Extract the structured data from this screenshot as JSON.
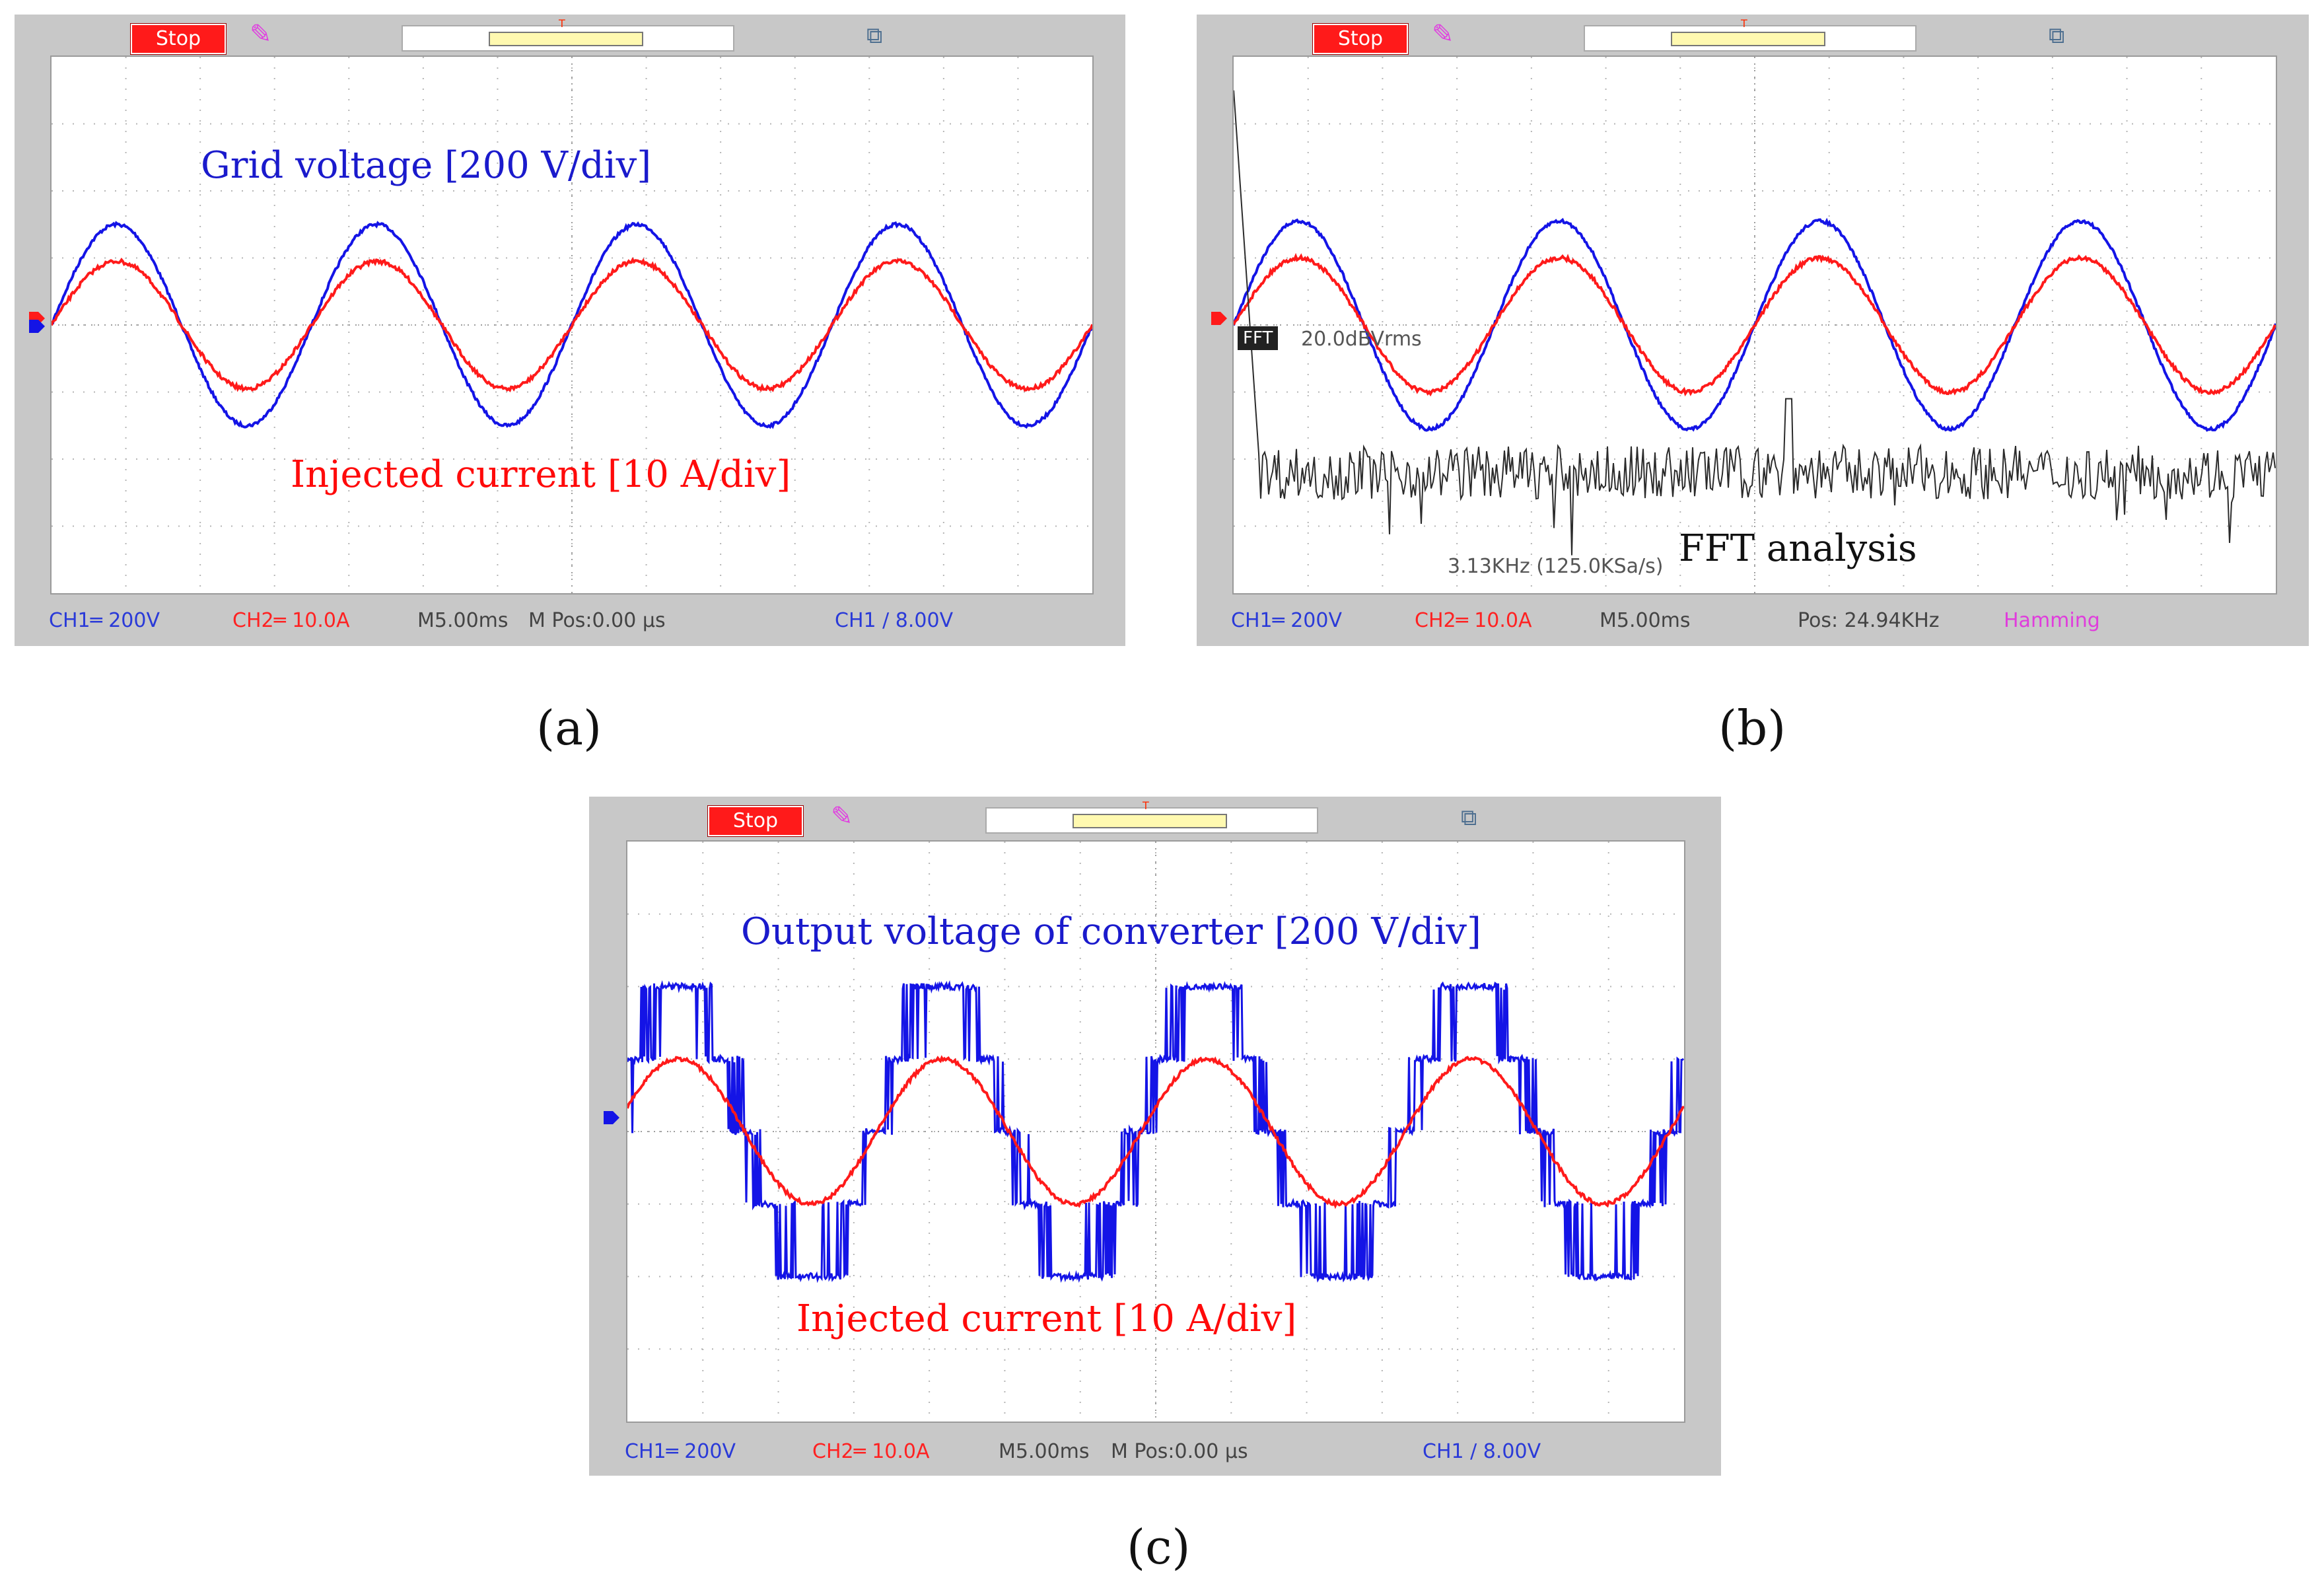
{
  "colors": {
    "ch1": "#1414e6",
    "ch2": "#ff1a1a",
    "fft": "#2b2b2b",
    "panel": "#c8c8c8",
    "grid": "#b5b5b5"
  },
  "panels": [
    {
      "id": "a",
      "caption": "(a)",
      "stop_label": "Stop",
      "note_top": "Grid voltage [200 V/div]",
      "note_bottom": "Injected   current   [10 A/div]",
      "status": {
        "ch1": "CH1═ 200V",
        "ch2": "CH2═ 10.0A",
        "time": "M5.00ms",
        "pos": "M Pos:0.00 µs",
        "trig": "CH1 ∕ 8.00V"
      },
      "ch1_marker": "1",
      "ch2_marker": "2",
      "trigger_marker": "T"
    },
    {
      "id": "b",
      "caption": "(b)",
      "stop_label": "Stop",
      "fft_badge": "FFT",
      "fft_scale": "20.0dBVrms",
      "fft_note": "3.13KHz (125.0KSa/s)",
      "note_fft": "FFT analysis",
      "status": {
        "ch1": "CH1═ 200V",
        "ch2": "CH2═ 10.0A",
        "time": "M5.00ms",
        "pos": "Pos: 24.94KHz",
        "window": "Hamming"
      },
      "ch1_marker": "1"
    },
    {
      "id": "c",
      "caption": "(c)",
      "stop_label": "Stop",
      "note_top": "Output voltage of converter [200 V/div]",
      "note_bottom": "Injected   current   [10 A/div]",
      "status": {
        "ch1": "CH1═ 200V",
        "ch2": "CH2═ 10.0A",
        "time": "M5.00ms",
        "pos": "M Pos:0.00 µs",
        "trig": "CH1 ∕ 8.00V"
      },
      "ch1_marker": "1",
      "trigger_marker": "T"
    }
  ],
  "chart_data": [
    {
      "type": "line",
      "title": "(a) Grid voltage and injected current",
      "x_unit": "ms",
      "x_per_div": 5,
      "x_divisions": 14,
      "y_divisions": 8,
      "series": [
        {
          "name": "Grid voltage",
          "channel": "CH1",
          "scale": "200 V/div",
          "amplitude_div": 1.5,
          "periods_on_screen": 4,
          "phase_deg": 0,
          "color": "#1414e6"
        },
        {
          "name": "Injected current",
          "channel": "CH2",
          "scale": "10 A/div",
          "amplitude_div": 0.95,
          "periods_on_screen": 4,
          "phase_deg": 0,
          "color": "#ff1a1a"
        }
      ]
    },
    {
      "type": "line",
      "title": "(b) FFT analysis",
      "x_unit": "ms",
      "x_per_div": 5,
      "x_divisions": 14,
      "y_divisions": 8,
      "series": [
        {
          "name": "Grid voltage",
          "channel": "CH1",
          "scale": "200 V/div",
          "amplitude_div": 1.55,
          "periods_on_screen": 4,
          "phase_deg": 0,
          "color": "#1414e6"
        },
        {
          "name": "Injected current",
          "channel": "CH2",
          "scale": "10 A/div",
          "amplitude_div": 1.0,
          "periods_on_screen": 4,
          "phase_deg": 0,
          "color": "#ff1a1a"
        },
        {
          "name": "FFT",
          "scale": "20.0dBVrms",
          "baseline_div": -2.2,
          "noise_div": 0.5,
          "fft_sample_rate": "125.0KSa/s",
          "fft_peak": "3.13KHz",
          "color": "#2b2b2b"
        }
      ]
    },
    {
      "type": "line",
      "title": "(c) Converter output voltage and injected current",
      "x_unit": "ms",
      "x_per_div": 5,
      "x_divisions": 14,
      "y_divisions": 8,
      "series": [
        {
          "name": "Output voltage of converter",
          "channel": "CH1",
          "scale": "200 V/div",
          "waveform": "multilevel",
          "levels": 5,
          "amplitude_div": 2.0,
          "periods_on_screen": 4,
          "phase_deg": 20,
          "color": "#1414e6"
        },
        {
          "name": "Injected current",
          "channel": "CH2",
          "scale": "10 A/div",
          "amplitude_div": 1.0,
          "periods_on_screen": 4,
          "phase_deg": 20,
          "color": "#ff1a1a"
        }
      ]
    }
  ]
}
